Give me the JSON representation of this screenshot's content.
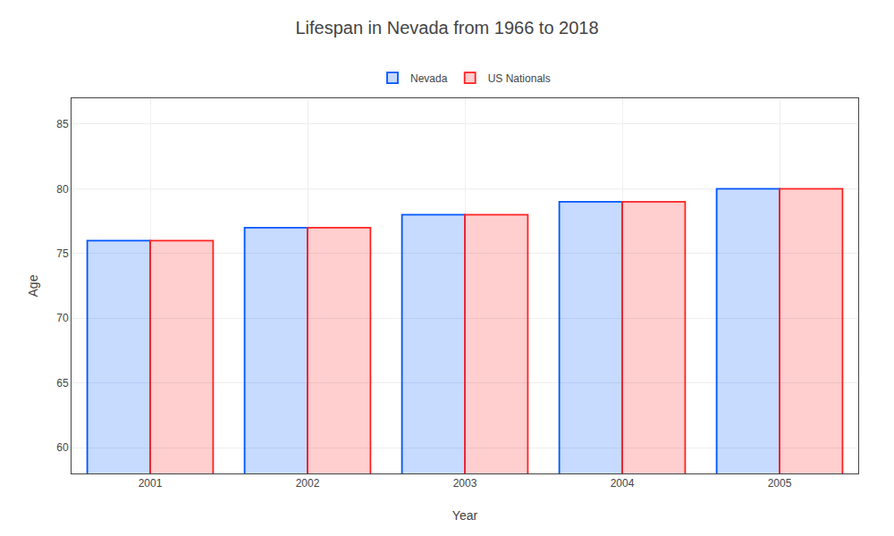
{
  "chart_data": {
    "type": "bar",
    "title": "Lifespan in Nevada from 1966 to 2018",
    "x_label": "Year",
    "y_label": "Age",
    "categories": [
      "2001",
      "2002",
      "2003",
      "2004",
      "2005"
    ],
    "series": [
      {
        "name": "Nevada",
        "color": "#0055ff",
        "values": [
          76,
          77,
          78,
          79,
          80
        ]
      },
      {
        "name": "US Nationals",
        "color": "#ff2222",
        "values": [
          76,
          77,
          78,
          79,
          80
        ]
      }
    ],
    "ylim": [
      58,
      87
    ],
    "yticks": [
      60,
      65,
      70,
      75,
      80,
      85
    ],
    "grid": true,
    "legend": "top"
  }
}
